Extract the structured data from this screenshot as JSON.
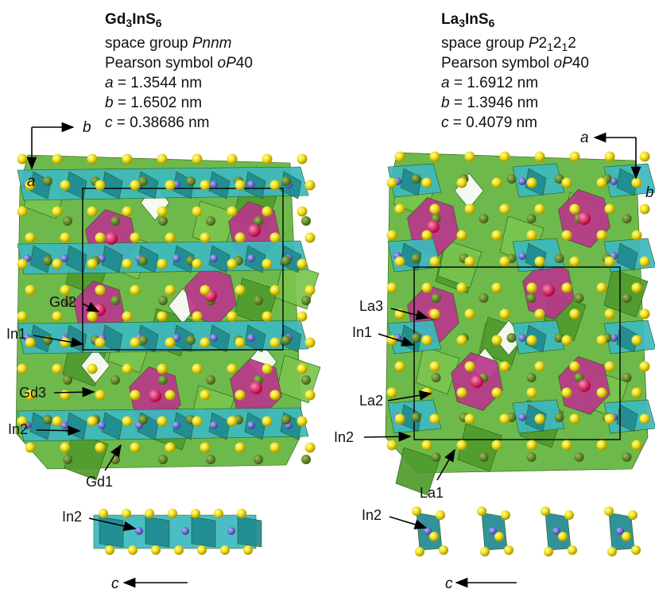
{
  "left": {
    "formula": [
      {
        "text": "Gd"
      },
      {
        "text": "3",
        "style": "sub"
      },
      {
        "text": "InS"
      },
      {
        "text": "6",
        "style": "sub"
      }
    ],
    "lines": [
      [
        {
          "text": "space group "
        },
        {
          "text": "Pnnm",
          "style": "italic"
        }
      ],
      [
        {
          "text": "Pearson symbol "
        },
        {
          "text": "oP",
          "style": "italic"
        },
        {
          "text": "40"
        }
      ],
      [
        {
          "text": "a",
          "style": "italic"
        },
        {
          "text": " = 1.3544 nm"
        }
      ],
      [
        {
          "text": "b",
          "style": "italic"
        },
        {
          "text": " = 1.6502 nm"
        }
      ],
      [
        {
          "text": "c",
          "style": "italic"
        },
        {
          "text": " = 0.38686 nm"
        }
      ]
    ],
    "axes": [
      "b",
      "a"
    ],
    "labels": [
      "Gd2",
      "In1",
      "Gd3",
      "In2",
      "Gd1"
    ],
    "chain_label": "In2",
    "chain_axis": "c"
  },
  "right": {
    "formula": [
      {
        "text": "La"
      },
      {
        "text": "3",
        "style": "sub"
      },
      {
        "text": "InS"
      },
      {
        "text": "6",
        "style": "sub"
      }
    ],
    "lines": [
      [
        {
          "text": "space group "
        },
        {
          "text": "P",
          "style": "italic"
        },
        {
          "text": "2"
        },
        {
          "text": "1",
          "style": "sub"
        },
        {
          "text": "2"
        },
        {
          "text": "1",
          "style": "sub"
        },
        {
          "text": "2"
        }
      ],
      [
        {
          "text": "Pearson symbol "
        },
        {
          "text": "oP",
          "style": "italic"
        },
        {
          "text": "40"
        }
      ],
      [
        {
          "text": "a",
          "style": "italic"
        },
        {
          "text": " = 1.6912 nm"
        }
      ],
      [
        {
          "text": "b",
          "style": "italic"
        },
        {
          "text": " = 1.3946 nm"
        }
      ],
      [
        {
          "text": "c",
          "style": "italic"
        },
        {
          "text": " = 0.4079 nm"
        }
      ]
    ],
    "axes": [
      "a",
      "b"
    ],
    "labels": [
      "La3",
      "In1",
      "La2",
      "In2",
      "La1"
    ],
    "chain_label": "In2",
    "chain_axis": "c"
  }
}
